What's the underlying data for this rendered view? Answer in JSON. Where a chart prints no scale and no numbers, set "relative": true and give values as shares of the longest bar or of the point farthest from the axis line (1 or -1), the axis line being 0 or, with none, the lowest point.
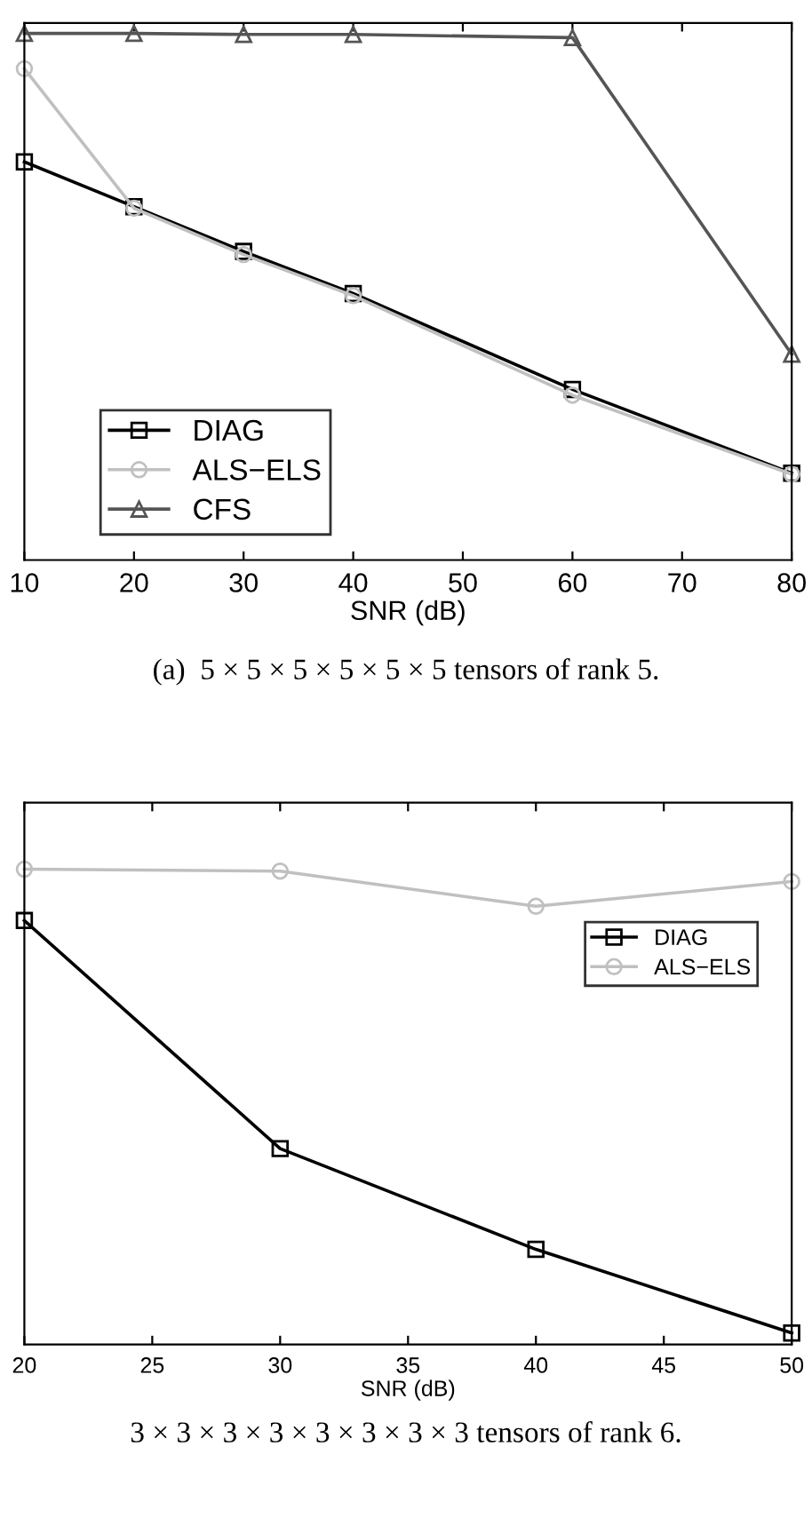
{
  "chart_data": [
    {
      "type": "line",
      "relative": true,
      "xlabel": "SNR (dB)",
      "x": [
        10,
        20,
        30,
        40,
        60,
        80
      ],
      "xlim": [
        10,
        80
      ],
      "xticks": [
        10,
        20,
        30,
        40,
        50,
        60,
        70,
        80
      ],
      "legend": "bottom left",
      "grid": false,
      "line_style": "solid",
      "annotations": [
        "(a)  5 × 5 × 5 × 5 × 5 × 5 tensors of rank 5."
      ],
      "series": [
        {
          "name": "DIAG",
          "color": "#000000",
          "marker": "square",
          "values": [
            0.756,
            0.671,
            0.586,
            0.506,
            0.324,
            0.165
          ]
        },
        {
          "name": "ALS−ELS",
          "color": "#c0c0c0",
          "marker": "circle",
          "values": [
            0.933,
            0.668,
            0.58,
            0.502,
            0.313,
            0.163
          ]
        },
        {
          "name": "CFS",
          "color": "#555555",
          "marker": "triangle",
          "values": [
            1,
            1,
            0.998,
            0.998,
            0.992,
            0.391
          ]
        }
      ]
    },
    {
      "type": "line",
      "relative": true,
      "xlabel": "SNR (dB)",
      "x": [
        20,
        30,
        40,
        50
      ],
      "xlim": [
        20,
        50
      ],
      "xticks": [
        20,
        25,
        30,
        35,
        40,
        45,
        50
      ],
      "legend": "top right",
      "grid": false,
      "line_style": "solid",
      "annotations": [
        "3 × 3 × 3 × 3 × 3 × 3 × 3 × 3 tensors of rank 6."
      ],
      "series": [
        {
          "name": "DIAG",
          "color": "#000000",
          "marker": "square",
          "values": [
            0.892,
            0.412,
            0.2,
            0.024
          ]
        },
        {
          "name": "ALS−ELS",
          "color": "#c0c0c0",
          "marker": "circle",
          "values": [
            1,
            0.996,
            0.922,
            0.974
          ]
        }
      ]
    }
  ]
}
